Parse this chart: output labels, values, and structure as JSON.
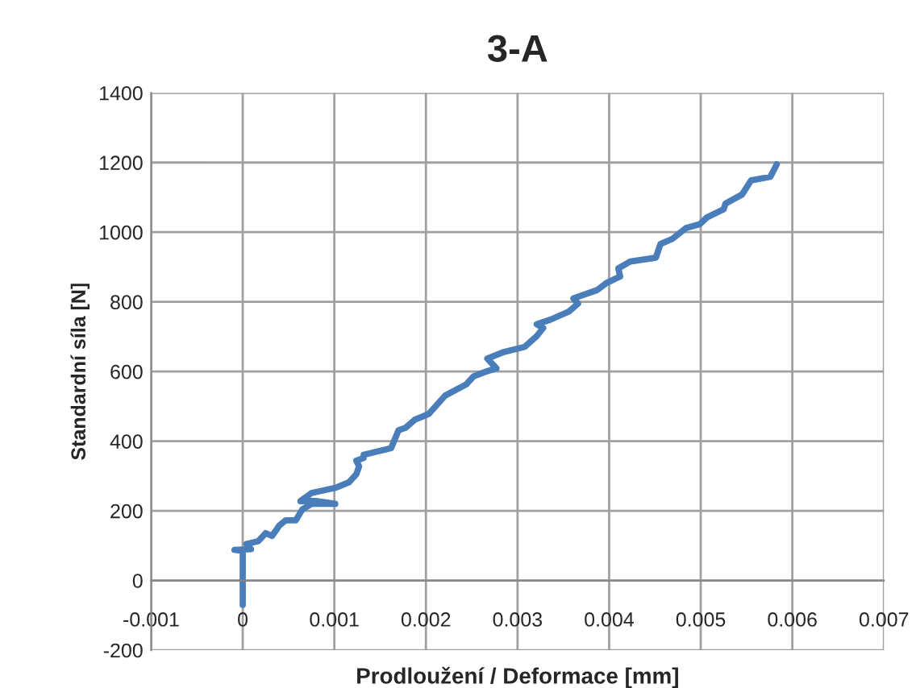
{
  "chart_data": {
    "type": "line",
    "title": "3-A",
    "xlabel": "Prodloužení / Deformace [mm]",
    "ylabel": "Standardní síla [N]",
    "series": [
      {
        "color": "#4a7ebb",
        "x": [
          0,
          0,
          -9e-05,
          9e-05,
          4e-05,
          0.00017,
          0.00025,
          0.00032,
          0.0004,
          0.00047,
          0.00058,
          0.00065,
          0.00075,
          0.00101,
          0.00081,
          0.00063,
          0.00075,
          0.00101,
          0.00116,
          0.00124,
          0.00127,
          0.00124,
          0.00132,
          0.00132,
          0.00162,
          0.0017,
          0.00178,
          0.00188,
          0.00203,
          0.00221,
          0.00244,
          0.00252,
          0.00267,
          0.00277,
          0.00267,
          0.00285,
          0.00308,
          0.00321,
          0.00328,
          0.00321,
          0.00336,
          0.00356,
          0.00366,
          0.00361,
          0.00387,
          0.00397,
          0.00412,
          0.0041,
          0.00423,
          0.00451,
          0.00456,
          0.00469,
          0.00484,
          0.00499,
          0.00507,
          0.00525,
          0.00527,
          0.00545,
          0.00555,
          0.00576,
          0.00583
        ],
        "values": [
          -70,
          85,
          88,
          90,
          105,
          113,
          136,
          128,
          158,
          173,
          173,
          204,
          220,
          220,
          228,
          228,
          251,
          266,
          282,
          305,
          328,
          344,
          352,
          361,
          380,
          431,
          439,
          462,
          478,
          531,
          563,
          586,
          601,
          609,
          637,
          656,
          671,
          702,
          725,
          736,
          749,
          772,
          795,
          810,
          834,
          854,
          873,
          896,
          916,
          927,
          966,
          981,
          1012,
          1023,
          1043,
          1066,
          1082,
          1108,
          1149,
          1159,
          1195
        ]
      }
    ],
    "xlim": [
      -0.001,
      0.007
    ],
    "xticks": [
      -0.001,
      0,
      0.001,
      0.002,
      0.003,
      0.004,
      0.005,
      0.006,
      0.007
    ],
    "ylim": [
      -200,
      1400
    ],
    "yticks": [
      -200,
      0,
      200,
      400,
      600,
      800,
      1000,
      1200,
      1400
    ],
    "grid": true,
    "legend": false,
    "marker": "none",
    "line_style": "solid"
  }
}
